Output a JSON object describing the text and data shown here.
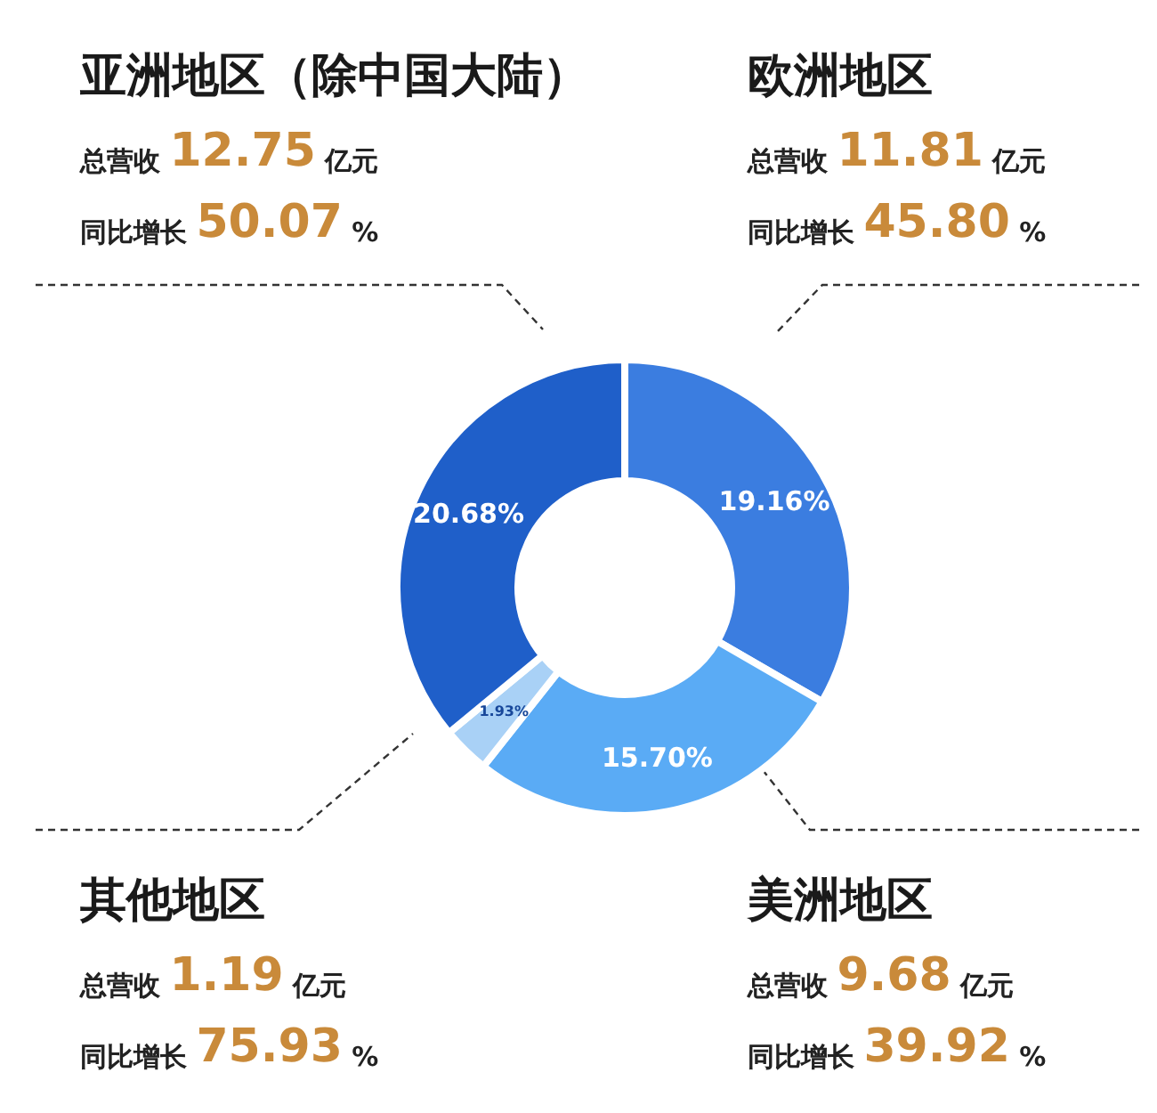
{
  "chart_data": {
    "type": "donut",
    "categories": [
      null,
      null,
      null,
      null
    ],
    "values": [
      19.16,
      15.7,
      1.93,
      20.68
    ],
    "colors": [
      "#3b7de0",
      "#5aabf5",
      "#a9d1f6",
      "#1f5fc9"
    ],
    "value_labels": [
      "19.16%",
      "15.70%",
      "1.93%",
      "20.68%"
    ],
    "annotations": [
      "欧洲地区",
      "总营收 11.81 亿元",
      "同比增长 45.80 %",
      "美洲地区",
      "总营收 9.68 亿元",
      "同比增长 39.92 %",
      "其他地区",
      "总营收 1.19 亿元",
      "同比增长 75.93 %",
      "亚洲地区（除中国大陆）",
      "总营收 12.75 亿元",
      "同比增长 50.07 %"
    ]
  }
}
